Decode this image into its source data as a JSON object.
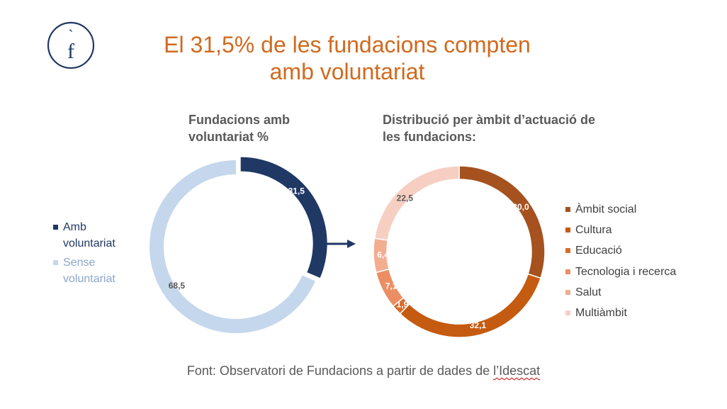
{
  "logo": {
    "letter": "f",
    "accent": "`"
  },
  "title": [
    "El 31,5% de les fundacions compten",
    "amb voluntariat"
  ],
  "colors": {
    "title": "#d2691e",
    "navy": "#1f3864",
    "light_blue": "#c5d7ec",
    "subhead": "#595959"
  },
  "chart_data": [
    {
      "type": "pie",
      "title": "Fundacions amb voluntariat %",
      "labels": [
        "Amb voluntariat",
        "Sense voluntariat"
      ],
      "values": [
        31.5,
        68.5
      ],
      "value_labels": [
        "31,5",
        "68,5"
      ],
      "colors": [
        "#1f3864",
        "#c5d7ec"
      ],
      "label_colors": [
        "#ffffff",
        "#595959"
      ],
      "legend_position": "left",
      "donut": true,
      "exploded": true
    },
    {
      "type": "pie",
      "title": "Distribució per àmbit d’actuació de les fundacions:",
      "labels": [
        "Àmbit social",
        "Cultura",
        "Educació",
        "Tecnologia i recerca",
        "Salut",
        "Multiàmbit"
      ],
      "values": [
        30.0,
        32.1,
        1.9,
        7.1,
        6.4,
        22.5
      ],
      "value_labels": [
        "30,0",
        "32,1",
        "1,9",
        "7,1",
        "6,4",
        "22,5"
      ],
      "colors": [
        "#a5521f",
        "#c55a11",
        "#d96c2b",
        "#ec8e64",
        "#f3ad91",
        "#f7cfc2"
      ],
      "label_colors": [
        "#ffffff",
        "#ffffff",
        "#ffffff",
        "#ffffff",
        "#ffffff",
        "#595959"
      ],
      "legend_position": "right",
      "donut": true
    }
  ],
  "source": {
    "prefix": "Font: Observatori de Fundacions a partir de dades de ",
    "link": "l’Idescat"
  }
}
